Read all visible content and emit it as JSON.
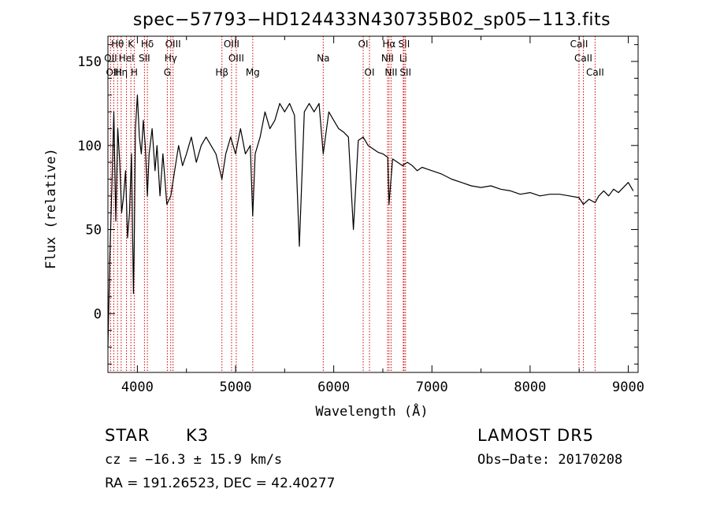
{
  "chart_data": {
    "type": "line",
    "title": "spec−57793−HD124433N430735B02_sp05−113.fits",
    "xlabel": "Wavelength (Å)",
    "ylabel": "Flux (relative)",
    "xlim": [
      3700,
      9100
    ],
    "ylim": [
      -35,
      165
    ],
    "xticks": [
      4000,
      5000,
      6000,
      7000,
      8000,
      9000
    ],
    "yticks": [
      0,
      50,
      100,
      150
    ],
    "grid": false,
    "line_color": "#000000",
    "marker_color": "#cc0000",
    "series": [
      {
        "x": [
          3700,
          3720,
          3740,
          3760,
          3780,
          3800,
          3820,
          3840,
          3860,
          3880,
          3900,
          3920,
          3940,
          3960,
          3968,
          3980,
          4000,
          4020,
          4040,
          4060,
          4080,
          4102,
          4120,
          4150,
          4180,
          4200,
          4230,
          4260,
          4300,
          4340,
          4380,
          4420,
          4460,
          4500,
          4550,
          4600,
          4650,
          4700,
          4750,
          4800,
          4861,
          4900,
          4950,
          5000,
          5050,
          5100,
          5150,
          5175,
          5200,
          5250,
          5300,
          5350,
          5400,
          5450,
          5500,
          5550,
          5600,
          5650,
          5700,
          5750,
          5800,
          5850,
          5893,
          5950,
          6000,
          6050,
          6100,
          6150,
          6200,
          6250,
          6300,
          6350,
          6400,
          6450,
          6500,
          6550,
          6563,
          6600,
          6650,
          6700,
          6750,
          6800,
          6850,
          6900,
          6950,
          7000,
          7100,
          7200,
          7300,
          7400,
          7500,
          7600,
          7700,
          7800,
          7900,
          8000,
          8100,
          8200,
          8300,
          8400,
          8498,
          8542,
          8600,
          8662,
          8700,
          8750,
          8800,
          8850,
          8900,
          8950,
          9000,
          9050
        ],
        "y": [
          -20,
          35,
          75,
          120,
          55,
          110,
          90,
          60,
          70,
          85,
          45,
          60,
          95,
          12,
          40,
          110,
          130,
          105,
          95,
          115,
          100,
          70,
          95,
          110,
          85,
          100,
          70,
          95,
          65,
          70,
          85,
          100,
          88,
          95,
          105,
          90,
          100,
          105,
          100,
          95,
          80,
          95,
          105,
          95,
          110,
          95,
          100,
          58,
          95,
          105,
          120,
          110,
          115,
          125,
          120,
          125,
          118,
          40,
          120,
          125,
          120,
          125,
          95,
          120,
          115,
          110,
          108,
          105,
          50,
          103,
          105,
          100,
          98,
          96,
          95,
          93,
          65,
          92,
          90,
          88,
          90,
          88,
          85,
          87,
          86,
          85,
          83,
          80,
          78,
          76,
          75,
          76,
          74,
          73,
          71,
          72,
          70,
          71,
          71,
          70,
          69,
          65,
          68,
          66,
          70,
          73,
          70,
          74,
          72,
          75,
          78,
          73
        ]
      }
    ],
    "line_markers": [
      {
        "label": "Hθ",
        "x": 3798,
        "row": 0
      },
      {
        "label": "K",
        "x": 3934,
        "row": 0
      },
      {
        "label": "Hδ",
        "x": 4102,
        "row": 0
      },
      {
        "label": "OIII",
        "x": 4363,
        "row": 0
      },
      {
        "label": "OIII",
        "x": 4959,
        "row": 0
      },
      {
        "label": "OI",
        "x": 6300,
        "row": 0
      },
      {
        "label": "Hα",
        "x": 6563,
        "row": 0
      },
      {
        "label": "SII",
        "x": 6716,
        "row": 0
      },
      {
        "label": "CaII",
        "x": 8498,
        "row": 0
      },
      {
        "label": "OII",
        "x": 3727,
        "row": 1
      },
      {
        "label": "HeI",
        "x": 3889,
        "row": 1
      },
      {
        "label": "SII",
        "x": 4072,
        "row": 1
      },
      {
        "label": "Hγ",
        "x": 4340,
        "row": 1
      },
      {
        "label": "OIII",
        "x": 5007,
        "row": 1
      },
      {
        "label": "NII",
        "x": 6548,
        "row": 1
      },
      {
        "label": "Li",
        "x": 6708,
        "row": 1
      },
      {
        "label": "CaII",
        "x": 8542,
        "row": 1
      },
      {
        "label": "OIII",
        "x": 3760,
        "row": 2
      },
      {
        "label": "Hη",
        "x": 3835,
        "row": 2
      },
      {
        "label": "H",
        "x": 3968,
        "row": 2
      },
      {
        "label": "G",
        "x": 4305,
        "row": 2
      },
      {
        "label": "Hβ",
        "x": 4861,
        "row": 2
      },
      {
        "label": "Mg",
        "x": 5175,
        "row": 2
      },
      {
        "label": "Na",
        "x": 5893,
        "row": 1
      },
      {
        "label": "OI",
        "x": 6364,
        "row": 2
      },
      {
        "label": "NII",
        "x": 6584,
        "row": 2
      },
      {
        "label": "SII",
        "x": 6731,
        "row": 2
      },
      {
        "label": "CaII",
        "x": 8662,
        "row": 2
      }
    ]
  },
  "info": {
    "object_class": "STAR",
    "subclass": "K3",
    "survey": "LAMOST DR5",
    "cz": "cz = −16.3 ± 15.9 km/s",
    "obs_date": "Obs−Date: 20170208",
    "coords": "RA = 191.26523, DEC =  42.40277"
  }
}
